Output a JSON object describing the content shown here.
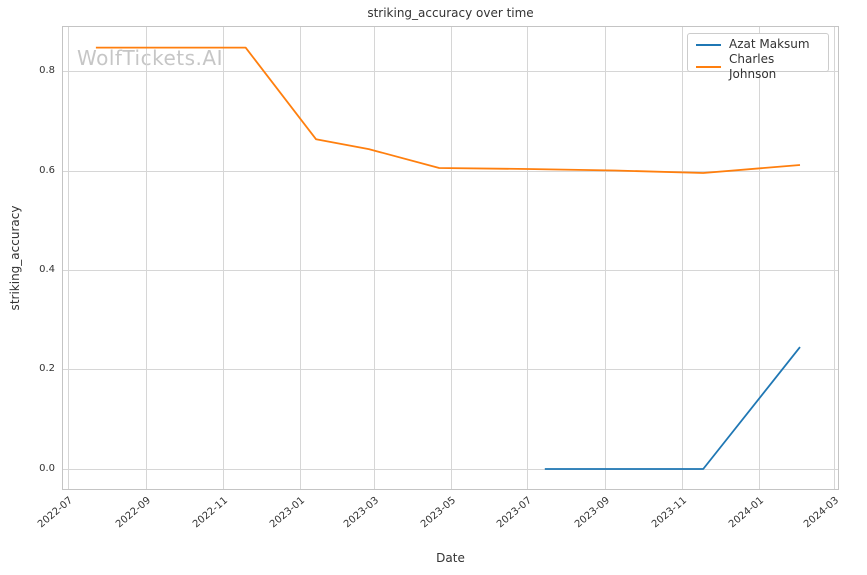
{
  "chart_data": {
    "type": "line",
    "title": "striking_accuracy over time",
    "xlabel": "Date",
    "ylabel": "striking_accuracy",
    "watermark": "WolfTickets.AI",
    "grid": true,
    "legend_position": "upper right",
    "x_domain": [
      "2022-06-26",
      "2024-03-05"
    ],
    "y_domain": [
      -0.0403,
      0.8905
    ],
    "x_ticks": [
      {
        "label": "2022-07",
        "date": "2022-07-01"
      },
      {
        "label": "2022-09",
        "date": "2022-09-01"
      },
      {
        "label": "2022-11",
        "date": "2022-11-01"
      },
      {
        "label": "2023-01",
        "date": "2023-01-01"
      },
      {
        "label": "2023-03",
        "date": "2023-03-01"
      },
      {
        "label": "2023-05",
        "date": "2023-05-01"
      },
      {
        "label": "2023-07",
        "date": "2023-07-01"
      },
      {
        "label": "2023-09",
        "date": "2023-09-01"
      },
      {
        "label": "2023-11",
        "date": "2023-11-01"
      },
      {
        "label": "2024-01",
        "date": "2024-01-01"
      },
      {
        "label": "2024-03",
        "date": "2024-03-01"
      }
    ],
    "y_ticks": [
      {
        "label": "0.0",
        "value": 0.0
      },
      {
        "label": "0.2",
        "value": 0.2
      },
      {
        "label": "0.4",
        "value": 0.4
      },
      {
        "label": "0.6",
        "value": 0.6
      },
      {
        "label": "0.8",
        "value": 0.8
      }
    ],
    "series": [
      {
        "name": "Azat Maksum",
        "color": "#1f77b4",
        "points": [
          {
            "date": "2023-07-15",
            "value": 0.0
          },
          {
            "date": "2023-11-18",
            "value": 0.0
          },
          {
            "date": "2024-02-03",
            "value": 0.245
          }
        ]
      },
      {
        "name": "Charles Johnson",
        "color": "#ff7f0e",
        "points": [
          {
            "date": "2022-07-23",
            "value": 0.847
          },
          {
            "date": "2022-11-19",
            "value": 0.847
          },
          {
            "date": "2023-01-14",
            "value": 0.663
          },
          {
            "date": "2023-02-25",
            "value": 0.643
          },
          {
            "date": "2023-04-22",
            "value": 0.605
          },
          {
            "date": "2023-07-01",
            "value": 0.603
          },
          {
            "date": "2023-09-09",
            "value": 0.6
          },
          {
            "date": "2023-11-18",
            "value": 0.595
          },
          {
            "date": "2024-02-03",
            "value": 0.611
          }
        ]
      }
    ]
  },
  "colors": {
    "background": "#ffffff",
    "grid": "#d6d6d6",
    "spine": "#c4c4c4",
    "text": "#333333",
    "watermark": "#c6c6c6",
    "legend_border": "#cccccc"
  }
}
